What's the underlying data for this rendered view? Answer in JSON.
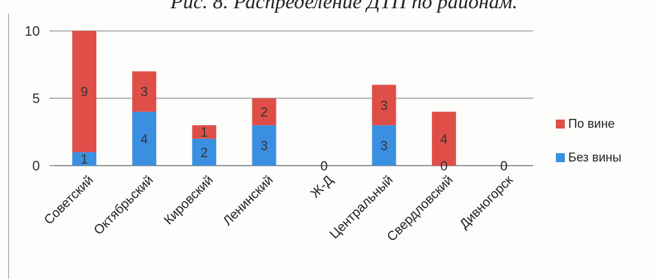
{
  "chart_data": {
    "type": "bar",
    "stacked": true,
    "title": "Рис. 8. Распределение ДТП по районам.",
    "categories": [
      "Советский",
      "Октябрьский",
      "Кировский",
      "Ленинский",
      "Ж-Д",
      "Центральный",
      "Свердловский",
      "Дивногорск"
    ],
    "series": [
      {
        "name": "Без вины",
        "color": "#3b8fe0",
        "values": [
          1,
          4,
          2,
          3,
          0,
          3,
          0,
          0
        ]
      },
      {
        "name": "По вине",
        "color": "#e04e48",
        "values": [
          9,
          3,
          1,
          2,
          0,
          3,
          4,
          0
        ]
      }
    ],
    "yticks": [
      0,
      5,
      10
    ],
    "ylim": [
      0,
      10
    ],
    "grid": true,
    "legend": "right"
  }
}
